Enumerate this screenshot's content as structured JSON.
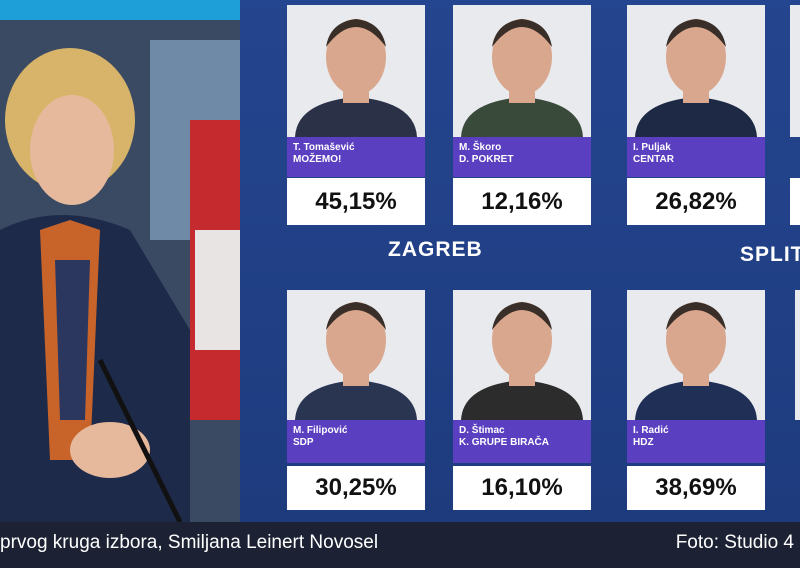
{
  "cities": [
    "ZAGREB",
    "SPLIT"
  ],
  "candidates": [
    {
      "name": "T. Tomašević",
      "party": "MOŽEMO!",
      "result": "45,15%"
    },
    {
      "name": "M. Škoro",
      "party": "D. POKRET",
      "result": "12,16%"
    },
    {
      "name": "I. Puljak",
      "party": "CENTAR",
      "result": "26,82%"
    },
    {
      "name": "M. Filipović",
      "party": "SDP",
      "result": "30,25%"
    },
    {
      "name": "D. Štimac",
      "party": "K. GRUPE BIRAČA",
      "result": "16,10%"
    },
    {
      "name": "I. Radić",
      "party": "HDZ",
      "result": "38,69%"
    }
  ],
  "caption": {
    "text": "prvog kruga izbora, Smiljana Leinert Novosel",
    "credit": "Foto: Studio 4"
  }
}
